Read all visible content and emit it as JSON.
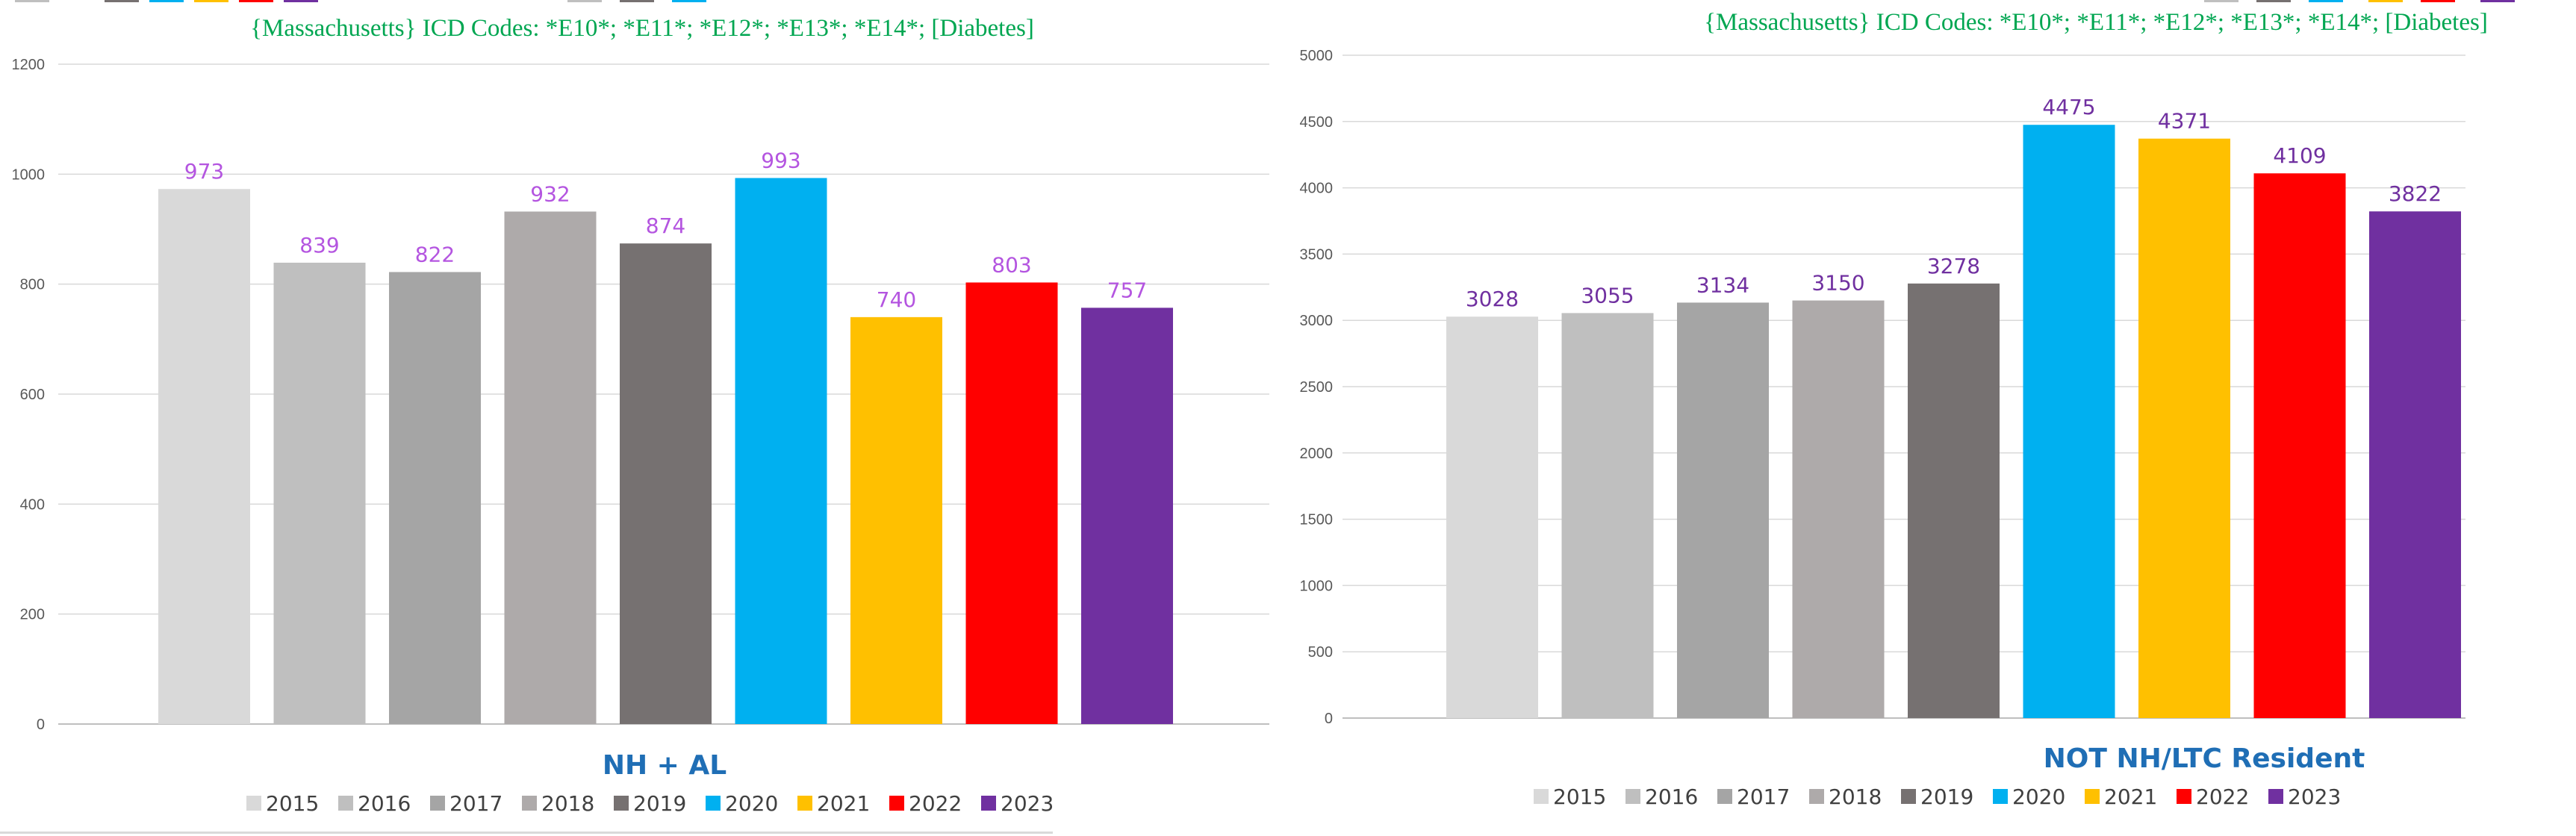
{
  "palette": {
    "2015": "#d9d9d9",
    "2016": "#bfbfbf",
    "2017": "#a5a5a5",
    "2018": "#aeaaaa",
    "2019": "#767171",
    "2020": "#00b0f0",
    "2021": "#ffc000",
    "2022": "#ff0000",
    "2023": "#7030a0"
  },
  "chart_data": [
    {
      "type": "bar",
      "subtitle": "{Massachusetts}   ICD Codes:  *E10*;  *E11*;  *E12*;  *E13*;  *E14*;   [Diabetes]",
      "title": "NH + AL",
      "categories": [
        "2015",
        "2016",
        "2017",
        "2018",
        "2019",
        "2020",
        "2021",
        "2022",
        "2023"
      ],
      "values": [
        973,
        839,
        822,
        932,
        874,
        993,
        740,
        803,
        757
      ],
      "ylim": [
        0,
        1200
      ],
      "yticks": [
        "0",
        "200",
        "400",
        "600",
        "800",
        "1000",
        "1200"
      ],
      "legend": [
        "2015",
        "2016",
        "2017",
        "2018",
        "2019",
        "2020",
        "2021",
        "2022",
        "2023"
      ],
      "legend_position": "bottom",
      "grid": true,
      "colors": {
        "subtitle": "#00a651",
        "title": "#1f6eb5",
        "data_labels": "#b455e0"
      }
    },
    {
      "type": "bar",
      "subtitle": "{Massachusetts}   ICD Codes:  *E10*;  *E11*;  *E12*;  *E13*;  *E14*;   [Diabetes]",
      "title": "NOT NH/LTC Resident",
      "categories": [
        "2015",
        "2016",
        "2017",
        "2018",
        "2019",
        "2020",
        "2021",
        "2022",
        "2023"
      ],
      "values": [
        3028,
        3055,
        3134,
        3150,
        3278,
        4475,
        4371,
        4109,
        3822
      ],
      "ylim": [
        0,
        5000
      ],
      "yticks": [
        "0",
        "500",
        "1000",
        "1500",
        "2000",
        "2500",
        "3000",
        "3500",
        "4000",
        "4500",
        "5000"
      ],
      "legend": [
        "2015",
        "2016",
        "2017",
        "2018",
        "2019",
        "2020",
        "2021",
        "2022",
        "2023"
      ],
      "legend_position": "bottom",
      "grid": true,
      "colors": {
        "subtitle": "#00a651",
        "title": "#1f6eb5",
        "data_labels": "#7030a0"
      }
    }
  ]
}
